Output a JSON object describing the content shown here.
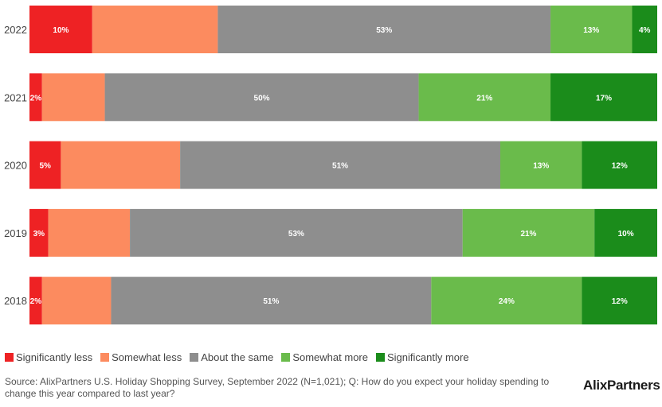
{
  "chart_data": {
    "type": "bar",
    "orientation": "horizontal-stacked-100",
    "categories": [
      "2022",
      "2021",
      "2020",
      "2019",
      "2018"
    ],
    "series": [
      {
        "name": "Significantly less",
        "color": "#ee2224",
        "values": [
          10,
          2,
          5,
          3,
          2
        ],
        "labels": [
          "10%",
          "2%",
          "5%",
          "3%",
          "2%"
        ]
      },
      {
        "name": "Somewhat less",
        "color": "#fc8b5f",
        "values": [
          20,
          10,
          19,
          13,
          11
        ],
        "labels": [
          "",
          "",
          "",
          "",
          ""
        ]
      },
      {
        "name": "About the same",
        "color": "#8e8e8e",
        "values": [
          53,
          50,
          51,
          53,
          51
        ],
        "labels": [
          "53%",
          "50%",
          "51%",
          "53%",
          "51%"
        ]
      },
      {
        "name": "Somewhat more",
        "color": "#6abb4b",
        "values": [
          13,
          21,
          13,
          21,
          24
        ],
        "labels": [
          "13%",
          "21%",
          "13%",
          "21%",
          "24%"
        ]
      },
      {
        "name": "Significantly more",
        "color": "#1b8c1b",
        "values": [
          4,
          17,
          12,
          10,
          12
        ],
        "labels": [
          "4%",
          "17%",
          "12%",
          "10%",
          "12%"
        ]
      }
    ],
    "xlim": [
      0,
      100
    ],
    "legend": "bottom"
  },
  "footer": {
    "source": "Source: AlixPartners U.S. Holiday Shopping Survey, September 2022 (N=1,021); Q: How do you expect your holiday spending to change this year compared to last year?",
    "logo": "AlixPartners"
  }
}
